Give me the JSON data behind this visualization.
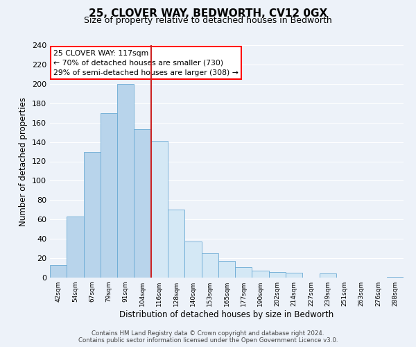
{
  "title": "25, CLOVER WAY, BEDWORTH, CV12 0GX",
  "subtitle": "Size of property relative to detached houses in Bedworth",
  "xlabel": "Distribution of detached houses by size in Bedworth",
  "ylabel": "Number of detached properties",
  "bin_labels": [
    "42sqm",
    "54sqm",
    "67sqm",
    "79sqm",
    "91sqm",
    "104sqm",
    "116sqm",
    "128sqm",
    "140sqm",
    "153sqm",
    "165sqm",
    "177sqm",
    "190sqm",
    "202sqm",
    "214sqm",
    "227sqm",
    "239sqm",
    "251sqm",
    "263sqm",
    "276sqm",
    "288sqm"
  ],
  "bar_values": [
    13,
    63,
    130,
    170,
    200,
    153,
    141,
    70,
    37,
    25,
    17,
    11,
    7,
    6,
    5,
    0,
    4,
    0,
    0,
    0,
    1
  ],
  "bar_color_left": "#b8d4eb",
  "bar_color_right": "#d4e8f5",
  "highlight_bar_index": 5,
  "ylim": [
    0,
    240
  ],
  "yticks": [
    0,
    20,
    40,
    60,
    80,
    100,
    120,
    140,
    160,
    180,
    200,
    220,
    240
  ],
  "annotation_line1": "25 CLOVER WAY: 117sqm",
  "annotation_line2": "← 70% of detached houses are smaller (730)",
  "annotation_line3": "29% of semi-detached houses are larger (308) →",
  "footer_line1": "Contains HM Land Registry data © Crown copyright and database right 2024.",
  "footer_line2": "Contains public sector information licensed under the Open Government Licence v3.0.",
  "background_color": "#edf2f9",
  "bar_edge_color": "#6aaad4",
  "grid_color": "#ffffff",
  "vline_color": "#cc2222",
  "title_fontsize": 11,
  "subtitle_fontsize": 9
}
